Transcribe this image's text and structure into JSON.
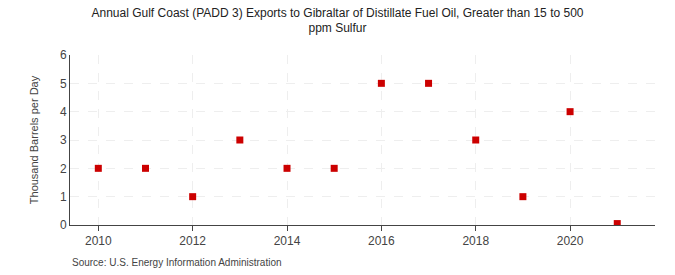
{
  "chart_data": {
    "type": "scatter",
    "title": "Annual Gulf Coast (PADD 3) Exports to Gibraltar of Distillate Fuel Oil, Greater than 15 to 500\nppm Sulfur",
    "y_label": "Thousand Barrels per Day",
    "annotations": [
      "Source: U.S. Energy Information Administration"
    ],
    "x": [
      2010,
      2011,
      2012,
      2013,
      2014,
      2015,
      2016,
      2017,
      2018,
      2019,
      2020,
      2021
    ],
    "values": [
      2,
      2,
      1,
      3,
      2,
      2,
      5,
      5,
      3,
      1,
      4,
      0.05
    ],
    "color": "#cc0000",
    "marker": "square",
    "xlim": [
      2009.4,
      2021.8
    ],
    "ylim": [
      0,
      6
    ],
    "xticks": [
      2010,
      2012,
      2014,
      2016,
      2018,
      2020
    ],
    "yticks": [
      0,
      1,
      2,
      3,
      4,
      5,
      6
    ],
    "grid": true
  }
}
